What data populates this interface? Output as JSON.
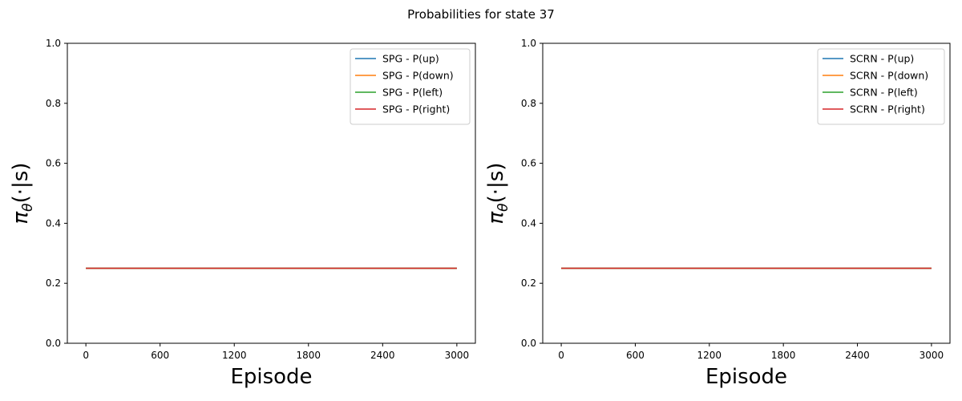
{
  "figure": {
    "title": "Probabilities for state 37"
  },
  "chart_data": [
    {
      "type": "line",
      "title": "",
      "xlabel": "Episode",
      "ylabel": "π_θ(·|s)",
      "ylabel_parts": {
        "main": "π",
        "sub": "θ",
        "rest": "(·|s)"
      },
      "xlim": [
        -150,
        3150
      ],
      "ylim": [
        0,
        1
      ],
      "xticks": [
        0,
        600,
        1200,
        1800,
        2400,
        3000
      ],
      "yticks": [
        0.0,
        0.2,
        0.4,
        0.6,
        0.8,
        1.0
      ],
      "ytick_labels": [
        "0.0",
        "0.2",
        "0.4",
        "0.6",
        "0.8",
        "1.0"
      ],
      "grid": false,
      "legend": "top-right",
      "x": [
        0,
        3000
      ],
      "series": [
        {
          "name": "SPG - P(up)",
          "color": "#1f77b4",
          "values": [
            0.25,
            0.25
          ]
        },
        {
          "name": "SPG - P(down)",
          "color": "#ff7f0e",
          "values": [
            0.25,
            0.25
          ]
        },
        {
          "name": "SPG - P(left)",
          "color": "#2ca02c",
          "values": [
            0.25,
            0.25
          ]
        },
        {
          "name": "SPG - P(right)",
          "color": "#d62728",
          "values": [
            0.25,
            0.25
          ]
        }
      ]
    },
    {
      "type": "line",
      "title": "",
      "xlabel": "Episode",
      "ylabel": "π_θ(·|s)",
      "ylabel_parts": {
        "main": "π",
        "sub": "θ",
        "rest": "(·|s)"
      },
      "xlim": [
        -150,
        3150
      ],
      "ylim": [
        0,
        1
      ],
      "xticks": [
        0,
        600,
        1200,
        1800,
        2400,
        3000
      ],
      "yticks": [
        0.0,
        0.2,
        0.4,
        0.6,
        0.8,
        1.0
      ],
      "ytick_labels": [
        "0.0",
        "0.2",
        "0.4",
        "0.6",
        "0.8",
        "1.0"
      ],
      "grid": false,
      "legend": "top-right",
      "x": [
        0,
        3000
      ],
      "series": [
        {
          "name": "SCRN - P(up)",
          "color": "#1f77b4",
          "values": [
            0.25,
            0.25
          ]
        },
        {
          "name": "SCRN - P(down)",
          "color": "#ff7f0e",
          "values": [
            0.25,
            0.25
          ]
        },
        {
          "name": "SCRN - P(left)",
          "color": "#2ca02c",
          "values": [
            0.25,
            0.25
          ]
        },
        {
          "name": "SCRN - P(right)",
          "color": "#d62728",
          "values": [
            0.25,
            0.25
          ]
        }
      ]
    }
  ]
}
